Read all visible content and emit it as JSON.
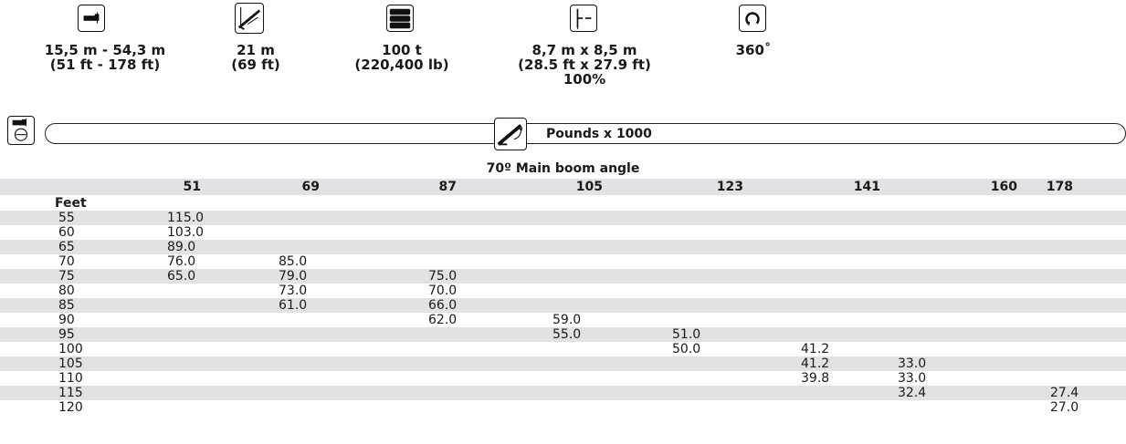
{
  "specs": [
    {
      "icon": "boom-length-icon",
      "lines": [
        "15,5 m - 54,3 m",
        "(51 ft - 178 ft)"
      ]
    },
    {
      "icon": "jib-length-icon",
      "lines": [
        "21 m",
        "(69 ft)"
      ]
    },
    {
      "icon": "counterweight-icon",
      "lines": [
        "100 t",
        "(220,400 lb)"
      ]
    },
    {
      "icon": "outrigger-spread-icon",
      "lines": [
        "8,7 m x 8,5 m",
        "(28.5 ft x 27.9 ft)",
        "100%"
      ]
    },
    {
      "icon": "rotation-icon",
      "lines": [
        "360˚"
      ]
    }
  ],
  "chart_header": {
    "units": "Pounds x 1000",
    "angle_label": "70º Main boom angle"
  },
  "table": {
    "columns": [
      "51",
      "69",
      "87",
      "105",
      "123",
      "141",
      "160",
      "178"
    ],
    "row_header": "Feet",
    "rows": [
      {
        "label": "55",
        "values": [
          "115.0",
          "",
          "",
          "",
          "",
          "",
          "",
          ""
        ]
      },
      {
        "label": "60",
        "values": [
          "103.0",
          "",
          "",
          "",
          "",
          "",
          "",
          ""
        ]
      },
      {
        "label": "65",
        "values": [
          "89.0",
          "",
          "",
          "",
          "",
          "",
          "",
          ""
        ]
      },
      {
        "label": "70",
        "values": [
          "76.0",
          "85.0",
          "",
          "",
          "",
          "",
          "",
          ""
        ]
      },
      {
        "label": "75",
        "values": [
          "65.0",
          "79.0",
          "75.0",
          "",
          "",
          "",
          "",
          ""
        ]
      },
      {
        "label": "80",
        "values": [
          "",
          "73.0",
          "70.0",
          "",
          "",
          "",
          "",
          ""
        ]
      },
      {
        "label": "85",
        "values": [
          "",
          "61.0",
          "66.0",
          "",
          "",
          "",
          "",
          ""
        ]
      },
      {
        "label": "90",
        "values": [
          "",
          "",
          "62.0",
          "59.0",
          "",
          "",
          "",
          ""
        ]
      },
      {
        "label": "95",
        "values": [
          "",
          "",
          "",
          "55.0",
          "51.0",
          "",
          "",
          ""
        ]
      },
      {
        "label": "100",
        "values": [
          "",
          "",
          "",
          "",
          "50.0",
          "41.2",
          "",
          ""
        ]
      },
      {
        "label": "105",
        "values": [
          "",
          "",
          "",
          "",
          "",
          "41.2",
          "33.0",
          ""
        ]
      },
      {
        "label": "110",
        "values": [
          "",
          "",
          "",
          "",
          "",
          "39.8",
          "33.0",
          ""
        ]
      },
      {
        "label": "115",
        "values": [
          "",
          "",
          "",
          "",
          "",
          "",
          "32.4",
          "27.4"
        ]
      },
      {
        "label": "120",
        "values": [
          "",
          "",
          "",
          "",
          "",
          "",
          "",
          "27.0"
        ]
      }
    ]
  }
}
